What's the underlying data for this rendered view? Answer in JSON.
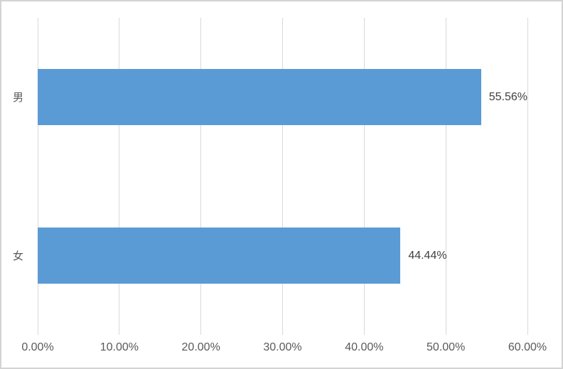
{
  "chart_data": {
    "type": "bar",
    "orientation": "horizontal",
    "title": "",
    "xlabel": "",
    "ylabel": "",
    "categories": [
      "男",
      "女"
    ],
    "values": [
      55.56,
      44.44
    ],
    "value_labels": [
      "55.56%",
      "44.44%"
    ],
    "xlim": [
      0,
      60
    ],
    "x_ticks": [
      0,
      10,
      20,
      30,
      40,
      50,
      60
    ],
    "x_tick_labels": [
      "0.00%",
      "10.00%",
      "20.00%",
      "30.00%",
      "40.00%",
      "50.00%",
      "60.00%"
    ],
    "grid": "vertical-gridlines-on",
    "legend": "none",
    "colors": {
      "bar": "#5b9bd5",
      "gridline": "#d9d9d9",
      "frame_border": "#d3d3d3",
      "tick_text": "#595959",
      "category_text": "#595959",
      "data_label_text": "#404040",
      "background": "#ffffff"
    }
  }
}
